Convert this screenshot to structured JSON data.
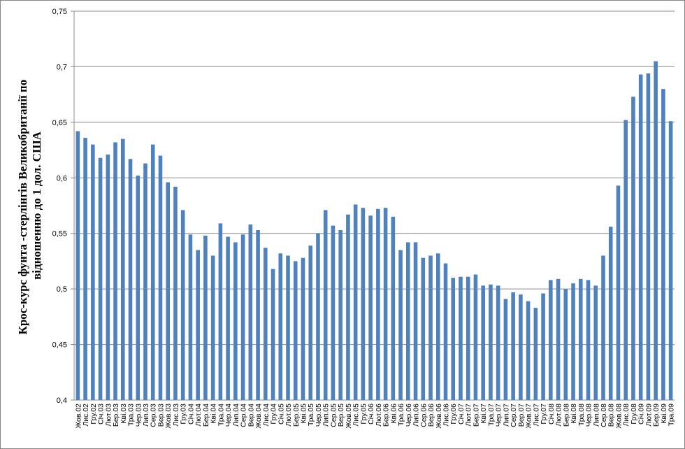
{
  "chart_data": {
    "type": "bar",
    "y_label": [
      "Крос-курс фунта -стерлінгів Великобританії по",
      "відношенню до 1 дол. США"
    ],
    "categories": [
      "Жов.02",
      "Лис.02",
      "Гру.02",
      "Січ.03",
      "Лют.03",
      "Бер.03",
      "Кві.03",
      "Тра.03",
      "Чер.03",
      "Лип.03",
      "Сер.03",
      "Вер.03",
      "Жов.03",
      "Лис.03",
      "Гру.03",
      "Січ.04",
      "Лют.04",
      "Бер.04",
      "Кві.04",
      "Тра.04",
      "Чер.04",
      "Лип.04",
      "Сер.04",
      "Вер.04",
      "Жов.04",
      "Лис.04",
      "Гру.04",
      "Січ.05",
      "Лют.05",
      "Бер.05",
      "Кві.05",
      "Тра.05",
      "Чер.05",
      "Лип.05",
      "Сер.05",
      "Вер.05",
      "Жов.05",
      "Лис.05",
      "Гру.05",
      "Січ.06",
      "Лют.06",
      "Бер.06",
      "Кві.06",
      "Тра.06",
      "Чер.06",
      "Лип.06",
      "Сер.06",
      "Вер.06",
      "Жов.06",
      "Лис.06",
      "Гру.06",
      "Січ.07",
      "Лют.07",
      "Бер.07",
      "Кві.07",
      "Тра.07",
      "Чер.07",
      "Лип.07",
      "Сер.07",
      "Вер.07",
      "Жов.07",
      "Лис.07",
      "Гру.07",
      "Січ.08",
      "Лют.08",
      "Бер.08",
      "Кві.08",
      "Тра.08",
      "Чер.08",
      "Лип.08",
      "Сер.08",
      "Вер.08",
      "Жов.08",
      "Лис.08",
      "Гру.08",
      "Січ.09",
      "Лют.09",
      "Бер.09",
      "Кві.09",
      "Тра.09"
    ],
    "values": [
      0.642,
      0.636,
      0.63,
      0.618,
      0.621,
      0.632,
      0.635,
      0.617,
      0.602,
      0.613,
      0.63,
      0.62,
      0.596,
      0.592,
      0.571,
      0.549,
      0.535,
      0.548,
      0.53,
      0.559,
      0.547,
      0.542,
      0.549,
      0.558,
      0.553,
      0.537,
      0.518,
      0.532,
      0.53,
      0.525,
      0.528,
      0.539,
      0.55,
      0.571,
      0.557,
      0.553,
      0.567,
      0.576,
      0.573,
      0.566,
      0.572,
      0.573,
      0.565,
      0.535,
      0.542,
      0.542,
      0.528,
      0.53,
      0.532,
      0.523,
      0.51,
      0.511,
      0.511,
      0.513,
      0.503,
      0.504,
      0.503,
      0.491,
      0.497,
      0.495,
      0.489,
      0.483,
      0.496,
      0.508,
      0.509,
      0.5,
      0.505,
      0.509,
      0.508,
      0.503,
      0.53,
      0.556,
      0.593,
      0.652,
      0.673,
      0.693,
      0.694,
      0.705,
      0.68,
      0.651
    ],
    "color": "#4f81bd",
    "ylim": [
      0.4,
      0.75
    ],
    "yticks": [
      {
        "value": 0.4,
        "label": "0,4"
      },
      {
        "value": 0.45,
        "label": "0,45"
      },
      {
        "value": 0.5,
        "label": "0,5"
      },
      {
        "value": 0.55,
        "label": "0,55"
      },
      {
        "value": 0.6,
        "label": "0,6"
      },
      {
        "value": 0.65,
        "label": "0,65"
      },
      {
        "value": 0.7,
        "label": "0,7"
      },
      {
        "value": 0.75,
        "label": "0,75"
      }
    ],
    "grid": true
  }
}
